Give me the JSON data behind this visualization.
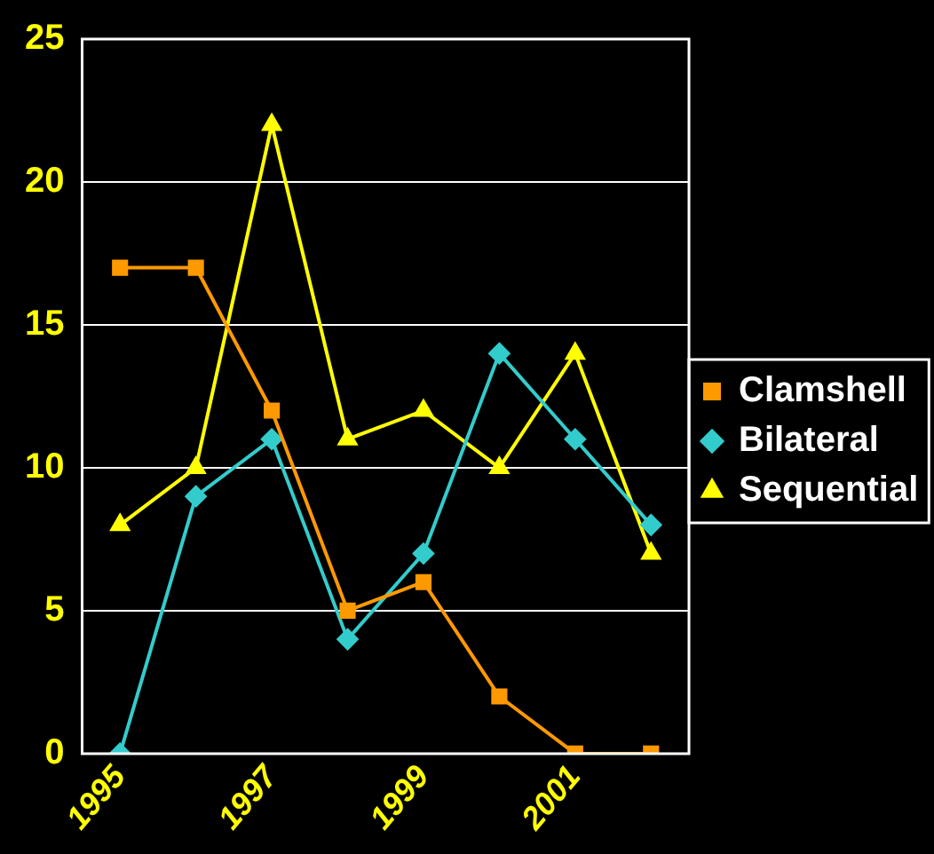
{
  "chart_data": {
    "type": "line",
    "categories": [
      "1995",
      null,
      "1997",
      null,
      "1999",
      null,
      "2001",
      null
    ],
    "series": [
      {
        "name": "Clamshell",
        "color": "#ff9900",
        "marker": "square",
        "values": [
          17,
          17,
          12,
          5,
          6,
          2,
          0,
          0
        ]
      },
      {
        "name": "Bilateral",
        "color": "#33cccc",
        "marker": "diamond",
        "values": [
          0,
          9,
          11,
          4,
          7,
          14,
          11,
          8
        ]
      },
      {
        "name": "Sequential",
        "color": "#ffff00",
        "marker": "triangle",
        "values": [
          8,
          10,
          22,
          11,
          12,
          10,
          14,
          7
        ]
      }
    ],
    "ylim": [
      0,
      25
    ],
    "yticks": [
      0,
      5,
      10,
      15,
      20,
      25
    ],
    "grid": "y",
    "legend": "right",
    "line_style": "solid"
  }
}
